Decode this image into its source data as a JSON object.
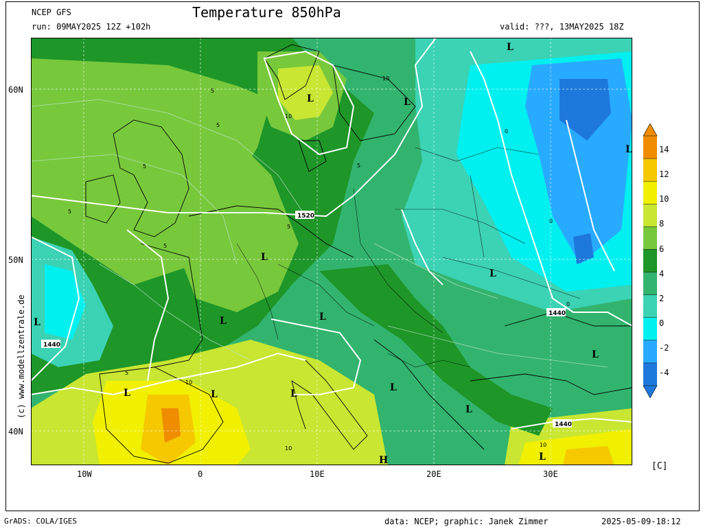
{
  "header": {
    "model": "NCEP GFS",
    "run": "run: 09MAY2025 12Z +102h",
    "title": "Temperature 850hPa",
    "valid": "valid: ???, 13MAY2025 18Z"
  },
  "footer": {
    "grads": "GrADS: COLA/IGES",
    "credits": "data: NCEP; graphic: Janek Zimmer",
    "timestamp": "2025-05-09-18:12"
  },
  "side_credit": "(c) www.modellzentrale.de",
  "axes": {
    "lat_labels": [
      "60N",
      "50N",
      "40N"
    ],
    "lon_labels": [
      "10W",
      "0",
      "10E",
      "20E",
      "30E"
    ]
  },
  "colorbar": {
    "labels": [
      "14",
      "12",
      "10",
      "8",
      "6",
      "4",
      "2",
      "0",
      "-2",
      "-4"
    ],
    "unit": "[C]",
    "colors": [
      "#f08c00",
      "#f5c800",
      "#f0f000",
      "#c8e632",
      "#78c83c",
      "#1e9628",
      "#32b46e",
      "#3cd2b4",
      "#00f0f0",
      "#28aaff",
      "#1e78dc"
    ]
  },
  "map_labels": {
    "pressure_systems": [
      "L",
      "L",
      "L",
      "L",
      "L",
      "L",
      "L",
      "L",
      "L",
      "L",
      "L",
      "L",
      "L",
      "L",
      "L",
      "L",
      "H"
    ],
    "isohypse_labels": [
      "1520",
      "1440",
      "1440",
      "1440"
    ],
    "isotherm_labels": [
      "5",
      "5",
      "5",
      "5",
      "5",
      "5",
      "5",
      "10",
      "10",
      "10",
      "10",
      "10",
      "0",
      "0",
      "0",
      "5"
    ]
  }
}
